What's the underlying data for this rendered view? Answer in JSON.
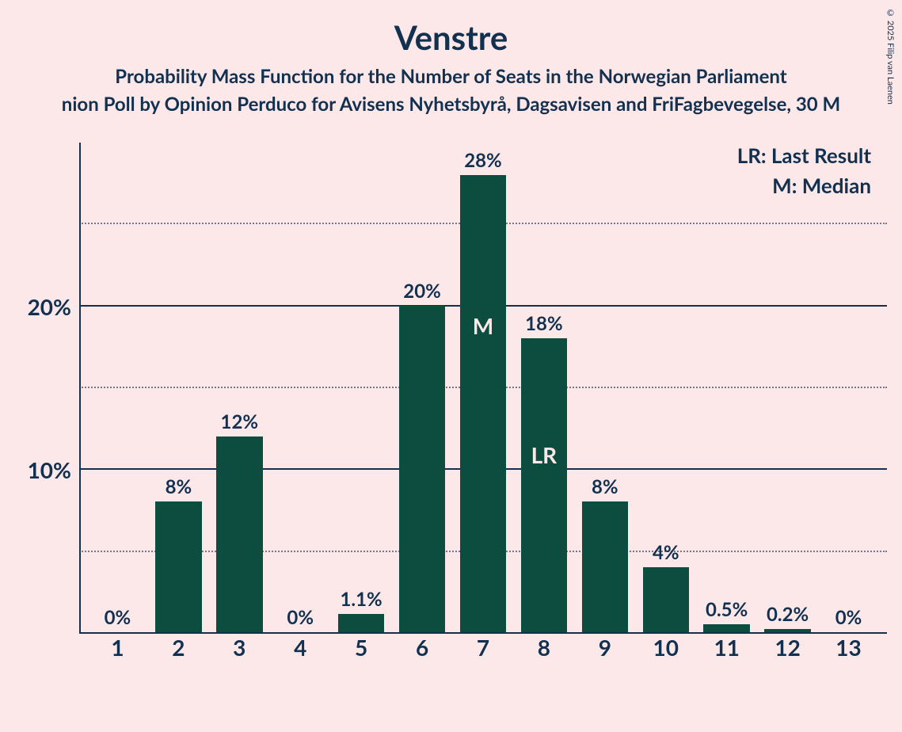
{
  "copyright": "© 2025 Filip van Laenen",
  "title": "Venstre",
  "subtitle1": "Probability Mass Function for the Number of Seats in the Norwegian Parliament",
  "subtitle2": "nion Poll by Opinion Perduco for Avisens Nyhetsbyrå, Dagsavisen and FriFagbevegelse, 30 M",
  "legend": {
    "lr": "LR: Last Result",
    "m": "M: Median"
  },
  "chart": {
    "type": "bar",
    "background_color": "#fce8e8",
    "bar_color": "#0d4d3f",
    "axis_color": "#12304f",
    "text_color": "#12304f",
    "marker_text_color": "#fce8e8",
    "title_fontsize": 42,
    "subtitle_fontsize": 24,
    "axis_label_fontsize": 28,
    "bar_label_fontsize": 24,
    "legend_fontsize": 26,
    "bar_width_ratio": 0.76,
    "ylim": [
      0,
      30
    ],
    "y_major_ticks": [
      10,
      20
    ],
    "y_minor_ticks": [
      5,
      15,
      25
    ],
    "y_tick_labels": {
      "10": "10%",
      "20": "20%"
    },
    "categories": [
      "1",
      "2",
      "3",
      "4",
      "5",
      "6",
      "7",
      "8",
      "9",
      "10",
      "11",
      "12",
      "13"
    ],
    "values": [
      0,
      8,
      12,
      0,
      1.1,
      20,
      28,
      18,
      8,
      4,
      0.5,
      0.2,
      0
    ],
    "value_labels": [
      "0%",
      "8%",
      "12%",
      "0%",
      "1.1%",
      "20%",
      "28%",
      "18%",
      "8%",
      "4%",
      "0.5%",
      "0.2%",
      "0%"
    ],
    "markers": [
      {
        "category": "7",
        "label": "M",
        "position_from_top_pct": 30
      },
      {
        "category": "8",
        "label": "LR",
        "position_from_top_pct": 35
      }
    ]
  }
}
